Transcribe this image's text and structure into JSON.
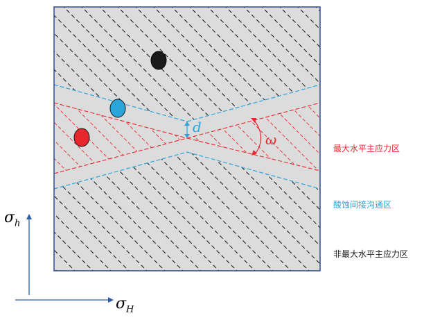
{
  "legend": {
    "max_stress_zone": "最大水平主应力区",
    "acid_channel_zone": "酸蚀间接沟通区",
    "non_max_stress_zone": "非最大水平主应力区"
  },
  "labels": {
    "spacing": "d",
    "angle": "ω",
    "sigma_h_base": "σ",
    "sigma_h_sub": "h",
    "sigma_H_base": "σ",
    "sigma_H_sub": "H"
  },
  "colors": {
    "panel_fill": "#dcdcdc",
    "panel_border": "#2b4a8a",
    "red": "#e8262d",
    "blue": "#2aa5dc",
    "black": "#000000",
    "axis": "#2b5fa8"
  },
  "wells": [
    {
      "name": "black-well",
      "color": "#1a1a1a"
    },
    {
      "name": "blue-well",
      "color": "#2aa5dc"
    },
    {
      "name": "red-well",
      "color": "#e8262d"
    }
  ]
}
